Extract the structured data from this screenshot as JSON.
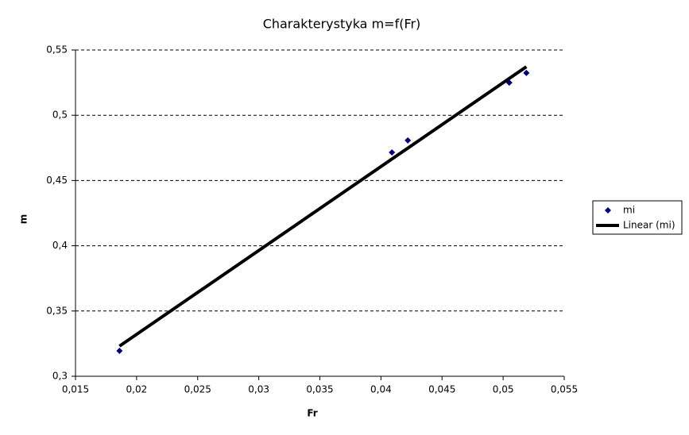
{
  "chart_data": {
    "type": "scatter",
    "title": "Charakterystyka m=f(Fr)",
    "x_label": "Fr",
    "y_label": "m",
    "series": [
      {
        "name": "mi",
        "color": "#000080",
        "mode": "markers",
        "x": [
          0.0186,
          0.0409,
          0.0422,
          0.0505,
          0.0519
        ],
        "values": [
          0.3195,
          0.4715,
          0.4807,
          0.525,
          0.5324
        ]
      },
      {
        "name": "Linear (mi)",
        "color": "#000000",
        "mode": "line",
        "x": [
          0.0186,
          0.0519
        ],
        "values": [
          0.3231,
          0.5372
        ]
      }
    ],
    "xlim": [
      0.015,
      0.055
    ],
    "xticks": [
      {
        "value": 0.015,
        "label": "0,015"
      },
      {
        "value": 0.02,
        "label": "0,02"
      },
      {
        "value": 0.025,
        "label": "0,025"
      },
      {
        "value": 0.03,
        "label": "0,03"
      },
      {
        "value": 0.035,
        "label": "0,035"
      },
      {
        "value": 0.04,
        "label": "0,04"
      },
      {
        "value": 0.045,
        "label": "0,045"
      },
      {
        "value": 0.05,
        "label": "0,05"
      },
      {
        "value": 0.055,
        "label": "0,055"
      }
    ],
    "ylim": [
      0.3,
      0.55
    ],
    "yticks": [
      {
        "value": 0.3,
        "label": "0,3"
      },
      {
        "value": 0.35,
        "label": "0,35"
      },
      {
        "value": 0.4,
        "label": "0,4"
      },
      {
        "value": 0.45,
        "label": "0,45"
      },
      {
        "value": 0.5,
        "label": "0,5"
      },
      {
        "value": 0.55,
        "label": "0,55"
      }
    ],
    "grid": true,
    "legend": "right"
  }
}
